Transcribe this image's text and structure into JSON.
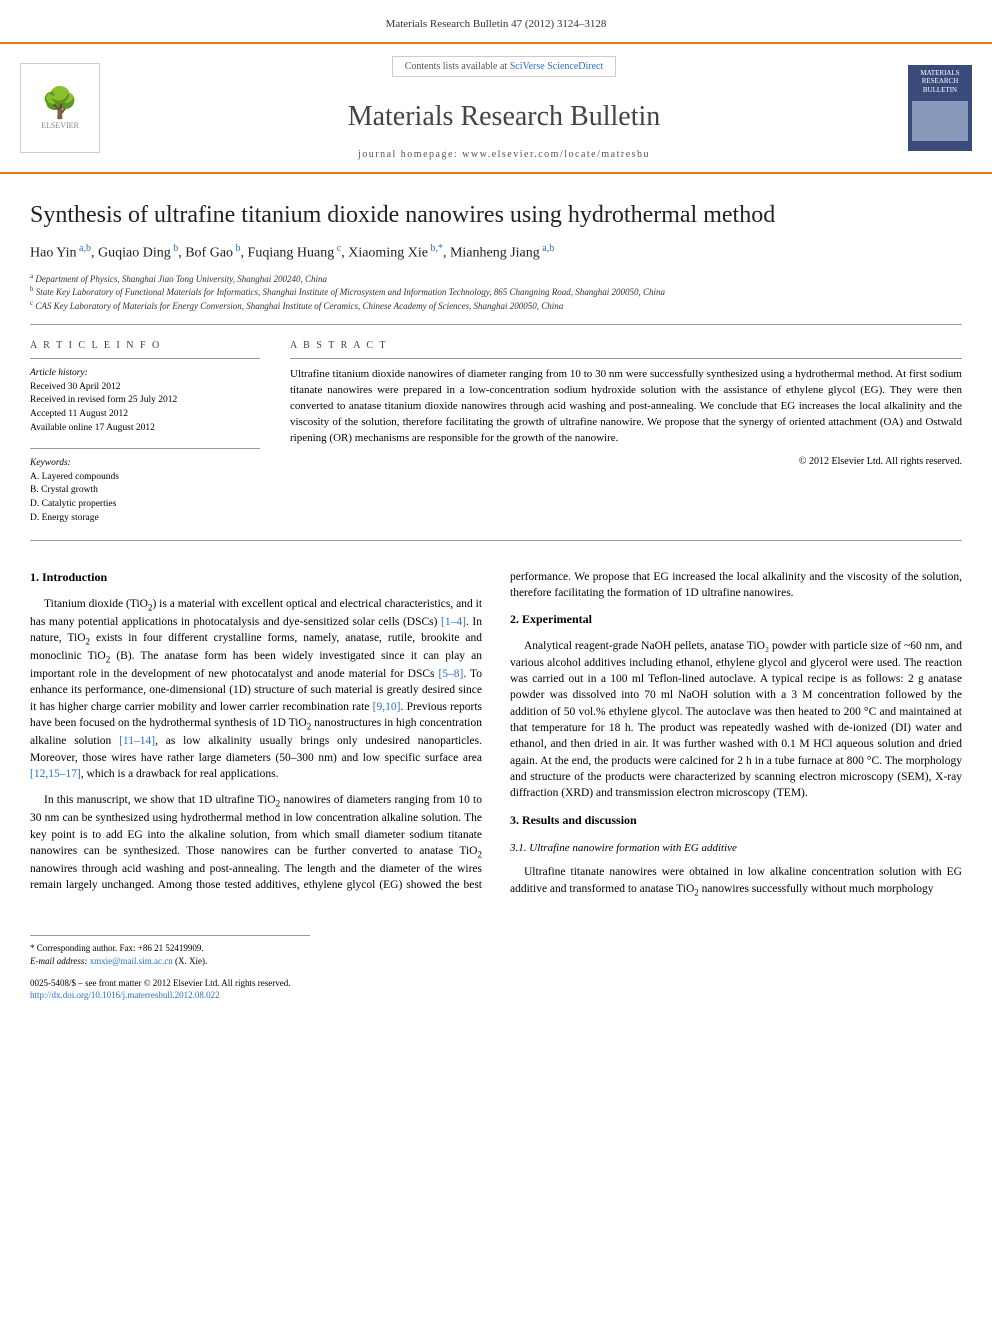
{
  "top_citation": "Materials Research Bulletin 47 (2012) 3124–3128",
  "header": {
    "contents_prefix": "Contents lists available at ",
    "contents_link": "SciVerse ScienceDirect",
    "journal_name": "Materials Research Bulletin",
    "homepage_prefix": "journal homepage: ",
    "homepage_url": "www.elsevier.com/locate/matresbu",
    "publisher": "ELSEVIER",
    "cover_title": "MATERIALS RESEARCH BULLETIN"
  },
  "title": "Synthesis of ultrafine titanium dioxide nanowires using hydrothermal method",
  "authors_html": "Hao Yin <sup>a,b</sup>, Guqiao Ding <sup>b</sup>, Bof Gao <sup>b</sup>, Fuqiang Huang <sup>c</sup>, Xiaoming Xie <sup>b,*</sup>, Mianheng Jiang <sup>a,b</sup>",
  "affiliations": {
    "a": "Department of Physics, Shanghai Jiao Tong University, Shanghai 200240, China",
    "b": "State Key Laboratory of Functional Materials for Informatics, Shanghai Institute of Microsystem and Information Technology, 865 Changning Road, Shanghai 200050, China",
    "c": "CAS Key Laboratory of Materials for Energy Conversion, Shanghai Institute of Ceramics, Chinese Academy of Sciences, Shanghai 200050, China"
  },
  "article_info": {
    "heading": "A R T I C L E  I N F O",
    "history_label": "Article history:",
    "received": "Received 30 April 2012",
    "revised": "Received in revised form 25 July 2012",
    "accepted": "Accepted 11 August 2012",
    "online": "Available online 17 August 2012",
    "keywords_label": "Keywords:",
    "keywords": [
      "A. Layered compounds",
      "B. Crystal growth",
      "D. Catalytic properties",
      "D. Energy storage"
    ]
  },
  "abstract": {
    "heading": "A B S T R A C T",
    "text": "Ultrafine titanium dioxide nanowires of diameter ranging from 10 to 30 nm were successfully synthesized using a hydrothermal method. At first sodium titanate nanowires were prepared in a low-concentration sodium hydroxide solution with the assistance of ethylene glycol (EG). They were then converted to anatase titanium dioxide nanowires through acid washing and post-annealing. We conclude that EG increases the local alkalinity and the viscosity of the solution, therefore facilitating the growth of ultrafine nanowire. We propose that the synergy of oriented attachment (OA) and Ostwald ripening (OR) mechanisms are responsible for the growth of the nanowire.",
    "copyright": "© 2012 Elsevier Ltd. All rights reserved."
  },
  "sections": {
    "s1": {
      "heading": "1. Introduction",
      "p1": "Titanium dioxide (TiO₂) is a material with excellent optical and electrical characteristics, and it has many potential applications in photocatalysis and dye-sensitized solar cells (DSCs) [1–4]. In nature, TiO₂ exists in four different crystalline forms, namely, anatase, rutile, brookite and monoclinic TiO₂ (B). The anatase form has been widely investigated since it can play an important role in the development of new photocatalyst and anode material for DSCs [5–8]. To enhance its performance, one-dimensional (1D) structure of such material is greatly desired since it has higher charge carrier mobility and lower carrier recombination rate [9,10]. Previous reports have been focused on the hydrothermal synthesis of 1D TiO₂ nanostructures in high concentration alkaline solution [11–14], as low alkalinity usually brings only undesired nanoparticles. Moreover, those wires have rather large diameters (50–300 nm) and low specific surface area [12,15–17], which is a drawback for real applications.",
      "p2": "In this manuscript, we show that 1D ultrafine TiO₂ nanowires of diameters ranging from 10 to 30 nm can be synthesized using hydrothermal method in low concentration alkaline solution. The key point is to add EG into the alkaline solution, from which small diameter sodium titanate nanowires can be synthesized. Those nanowires can be further converted to anatase TiO₂ nanowires through acid washing and post-annealing. The length and the diameter of the wires remain largely unchanged. Among those tested additives, ethylene glycol (EG) showed the best performance. We propose that EG increased the local alkalinity and the viscosity of the solution, therefore facilitating the formation of 1D ultrafine nanowires."
    },
    "s2": {
      "heading": "2. Experimental",
      "p1": "Analytical reagent-grade NaOH pellets, anatase TiO₂ powder with particle size of ~60 nm, and various alcohol additives including ethanol, ethylene glycol and glycerol were used. The reaction was carried out in a 100 ml Teflon-lined autoclave. A typical recipe is as follows: 2 g anatase powder was dissolved into 70 ml NaOH solution with a 3 M concentration followed by the addition of 50 vol.% ethylene glycol. The autoclave was then heated to 200 °C and maintained at that temperature for 18 h. The product was repeatedly washed with de-ionized (DI) water and ethanol, and then dried in air. It was further washed with 0.1 M HCl aqueous solution and dried again. At the end, the products were calcined for 2 h in a tube furnace at 800 °C. The morphology and structure of the products were characterized by scanning electron microscopy (SEM), X-ray diffraction (XRD) and transmission electron microscopy (TEM)."
    },
    "s3": {
      "heading": "3. Results and discussion",
      "sub1": "3.1. Ultrafine nanowire formation with EG additive",
      "p1": "Ultrafine titanate nanowires were obtained in low alkaline concentration solution with EG additive and transformed to anatase TiO₂ nanowires successfully without much morphology"
    }
  },
  "footnote": {
    "corr": "* Corresponding author. Fax: +86 21 52419909.",
    "email_label": "E-mail address: ",
    "email": "xmxie@mail.sim.ac.cn",
    "email_suffix": " (X. Xie)."
  },
  "footer": {
    "line1": "0025-5408/$ – see front matter © 2012 Elsevier Ltd. All rights reserved.",
    "doi_url": "http://dx.doi.org/10.1016/j.materresbull.2012.08.022"
  },
  "colors": {
    "accent": "#e67817",
    "link": "#2a6fc9",
    "cover_bg": "#3a4a7a"
  }
}
